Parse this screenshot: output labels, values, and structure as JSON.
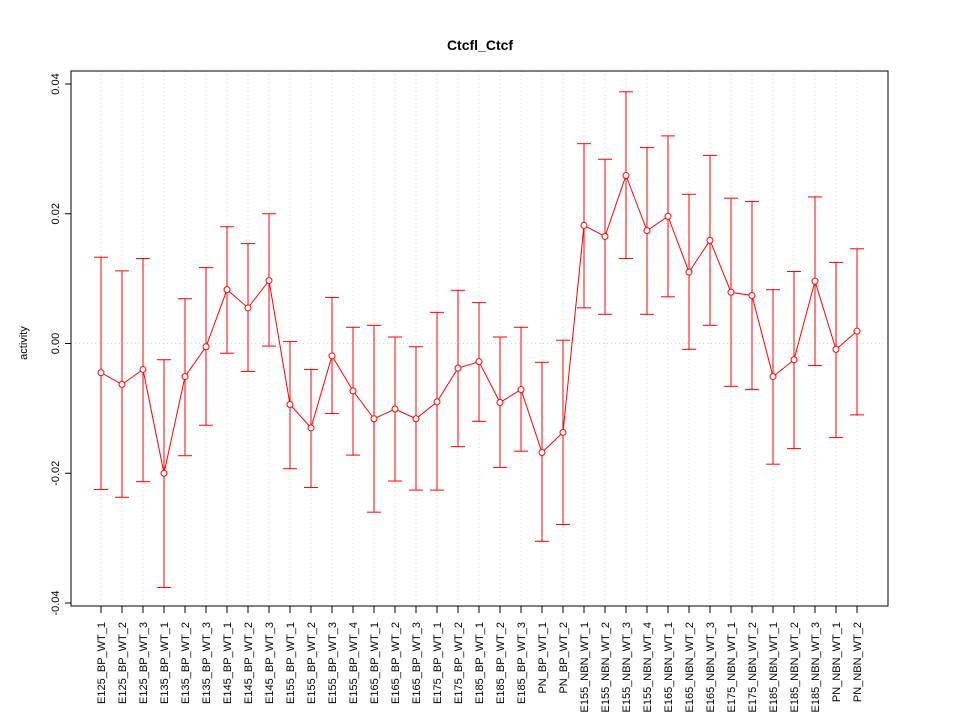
{
  "chart_data": {
    "type": "line",
    "title": "Ctcfl_Ctcf",
    "xlabel": "",
    "ylabel": "activity",
    "ylim": [
      -0.04,
      0.04
    ],
    "yticks": [
      -0.04,
      -0.02,
      0.0,
      0.02,
      0.04
    ],
    "ytick_labels": [
      "-0.04",
      "-0.02",
      "0.00",
      "0.02",
      "0.04"
    ],
    "grid": true,
    "color": "#ff0000",
    "categories": [
      "E125_BP_WT_1",
      "E125_BP_WT_2",
      "E125_BP_WT_3",
      "E135_BP_WT_1",
      "E135_BP_WT_2",
      "E135_BP_WT_3",
      "E145_BP_WT_1",
      "E145_BP_WT_2",
      "E145_BP_WT_3",
      "E155_BP_WT_1",
      "E155_BP_WT_2",
      "E155_BP_WT_3",
      "E155_BP_WT_4",
      "E165_BP_WT_1",
      "E165_BP_WT_2",
      "E165_BP_WT_3",
      "E175_BP_WT_1",
      "E175_BP_WT_2",
      "E185_BP_WT_1",
      "E185_BP_WT_2",
      "E185_BP_WT_3",
      "PN_BP_WT_1",
      "PN_BP_WT_2",
      "E155_NBN_WT_1",
      "E155_NBN_WT_2",
      "E155_NBN_WT_3",
      "E155_NBN_WT_4",
      "E165_NBN_WT_1",
      "E165_NBN_WT_2",
      "E165_NBN_WT_3",
      "E175_NBN_WT_1",
      "E175_NBN_WT_2",
      "E185_NBN_WT_1",
      "E185_NBN_WT_2",
      "E185_NBN_WT_3",
      "PN_NBN_WT_1",
      "PN_NBN_WT_2"
    ],
    "values": [
      -0.0045,
      -0.0063,
      -0.004,
      -0.02,
      -0.0051,
      -0.0005,
      0.0083,
      0.0055,
      0.0097,
      -0.0094,
      -0.013,
      -0.0019,
      -0.0073,
      -0.0116,
      -0.0101,
      -0.0116,
      -0.009,
      -0.0038,
      -0.0028,
      -0.0091,
      -0.0071,
      -0.0168,
      -0.0137,
      0.0182,
      0.0165,
      0.0259,
      0.0174,
      0.0196,
      0.011,
      0.0159,
      0.0079,
      0.0074,
      -0.0051,
      -0.0025,
      0.0096,
      -0.0009,
      0.0019
    ],
    "upper": [
      0.0133,
      0.0112,
      0.0131,
      -0.0025,
      0.0069,
      0.0117,
      0.018,
      0.0154,
      0.02,
      0.0003,
      -0.004,
      0.0071,
      0.0025,
      0.0028,
      0.001,
      -0.0005,
      0.0048,
      0.0082,
      0.0063,
      0.001,
      0.0025,
      -0.0029,
      0.0005,
      0.0308,
      0.0284,
      0.0388,
      0.0302,
      0.032,
      0.023,
      0.029,
      0.0224,
      0.0219,
      0.0083,
      0.0111,
      0.0226,
      0.0125,
      0.0146
    ],
    "lower": [
      -0.0225,
      -0.0237,
      -0.0213,
      -0.0376,
      -0.0173,
      -0.0126,
      -0.0015,
      -0.0043,
      -0.0004,
      -0.0193,
      -0.0222,
      -0.0108,
      -0.0172,
      -0.026,
      -0.0212,
      -0.0226,
      -0.0226,
      -0.0159,
      -0.012,
      -0.0191,
      -0.0166,
      -0.0305,
      -0.0279,
      0.0055,
      0.0045,
      0.0131,
      0.0045,
      0.0072,
      -0.0009,
      0.0028,
      -0.0066,
      -0.0071,
      -0.0186,
      -0.0162,
      -0.0034,
      -0.0145,
      -0.011
    ]
  }
}
